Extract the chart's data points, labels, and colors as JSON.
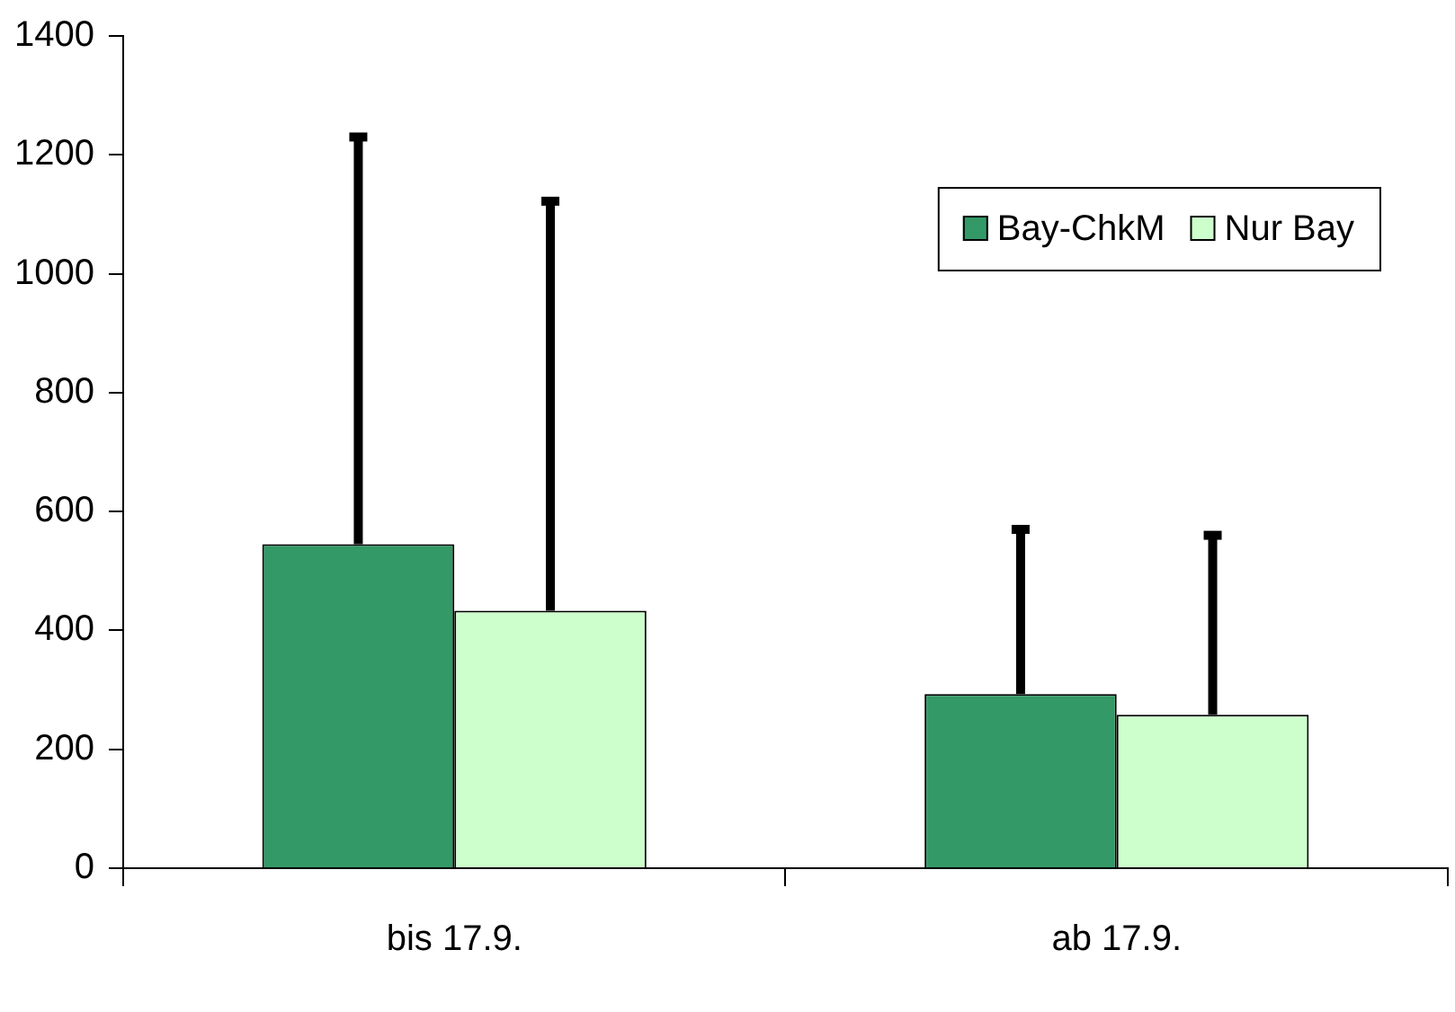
{
  "chart_data": {
    "type": "bar",
    "categories": [
      "bis 17.9.",
      "ab 17.9."
    ],
    "series": [
      {
        "name": "Bay-ChkM",
        "color": "#339966",
        "values": [
          545,
          293
        ],
        "errors": [
          [
            545,
            1230
          ],
          [
            293,
            570
          ]
        ]
      },
      {
        "name": "Nur Bay",
        "color": "#ccffcc",
        "values": [
          433,
          258
        ],
        "errors": [
          [
            433,
            1122
          ],
          [
            258,
            560
          ]
        ]
      }
    ],
    "ylim": [
      0,
      1400
    ],
    "yticks": [
      0,
      200,
      400,
      600,
      800,
      1000,
      1200,
      1400
    ],
    "grid": false,
    "legend": "top right"
  }
}
